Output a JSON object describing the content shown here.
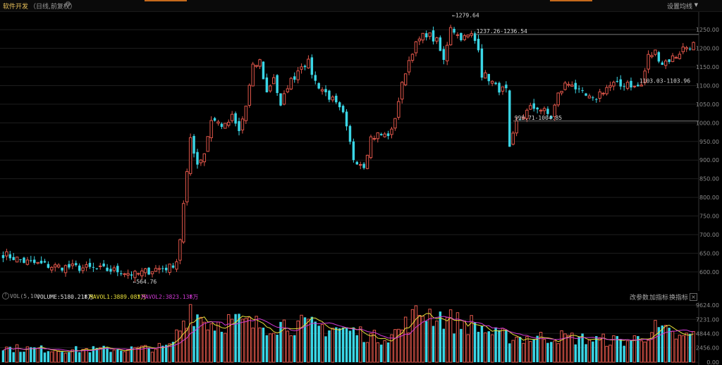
{
  "header": {
    "title": "软件开发",
    "subtitle": "（日线,前复权）",
    "ma_setting_label": "设置均线",
    "accent_color": "#c56a1c"
  },
  "colors": {
    "up": "#e0564a",
    "down": "#3ad6e6",
    "grid": "#1e1e1e",
    "axis_text": "#8a8a8a",
    "annotation": "#d8d8d8",
    "vol_ma1": "#e8e03a",
    "vol_ma2": "#d23ad6"
  },
  "vol_header": {
    "indicator": "VOL(5,10)",
    "volume_label": "VOLUME:5180.218万",
    "mavol1_label": "MAVOL1:3889.083万",
    "mavol2_label": "MAVOL2:3823.138万",
    "arrow": "↑",
    "buttons": [
      "改参数",
      "加指标",
      "换指标"
    ],
    "close": "×"
  },
  "chart_data": [
    {
      "type": "candlestick",
      "title": "软件开发（日线,前复权）",
      "ylim": [
        560,
        1290
      ],
      "yticks": [
        600,
        650,
        700,
        750,
        800,
        850,
        900,
        950,
        1000,
        1050,
        1100,
        1150,
        1200,
        1250
      ],
      "ytick_labels": [
        "600.00",
        "650.00",
        "700.00",
        "750.00",
        "800.00",
        "850.00",
        "900.00",
        "950.00",
        "1000.00",
        "1050.00",
        "1100.00",
        "1150.00",
        "1200.00",
        "1250.00"
      ],
      "grid": true,
      "n_bars": 200,
      "annotations": [
        {
          "text": "←1279.64",
          "bar": 129,
          "value": 1279.64
        },
        {
          "text": "←564.76",
          "bar": 37,
          "value": 564.76
        },
        {
          "text": "1237.26-1236.54",
          "bar": 136,
          "value": 1237.26,
          "line_to_end": true
        },
        {
          "text": "999.71-1004.85",
          "bar": 147,
          "value": 1004.85,
          "line_to_end": true
        },
        {
          "text": "1103.03-1103.96",
          "bar": 183,
          "value": 1103.96
        }
      ],
      "close_path": [
        [
          0,
          648
        ],
        [
          6,
          628
        ],
        [
          14,
          615
        ],
        [
          24,
          610
        ],
        [
          34,
          602
        ],
        [
          38,
          592
        ],
        [
          44,
          608
        ],
        [
          48,
          612
        ],
        [
          50,
          630
        ],
        [
          51,
          690
        ],
        [
          52,
          780
        ],
        [
          53,
          860
        ],
        [
          54,
          960
        ],
        [
          56,
          890
        ],
        [
          58,
          920
        ],
        [
          60,
          1010
        ],
        [
          64,
          990
        ],
        [
          66,
          1015
        ],
        [
          68,
          975
        ],
        [
          70,
          1045
        ],
        [
          72,
          1148
        ],
        [
          74,
          1165
        ],
        [
          76,
          1080
        ],
        [
          78,
          1125
        ],
        [
          80,
          1040
        ],
        [
          82,
          1100
        ],
        [
          84,
          1125
        ],
        [
          86,
          1158
        ],
        [
          88,
          1160
        ],
        [
          90,
          1110
        ],
        [
          92,
          1090
        ],
        [
          95,
          1060
        ],
        [
          98,
          1020
        ],
        [
          101,
          905
        ],
        [
          104,
          888
        ],
        [
          106,
          960
        ],
        [
          108,
          968
        ],
        [
          110,
          966
        ],
        [
          112,
          975
        ],
        [
          114,
          1060
        ],
        [
          116,
          1140
        ],
        [
          118,
          1195
        ],
        [
          120,
          1222
        ],
        [
          122,
          1240
        ],
        [
          125,
          1218
        ],
        [
          127,
          1165
        ],
        [
          129,
          1262
        ],
        [
          131,
          1235
        ],
        [
          133,
          1228
        ],
        [
          135,
          1235
        ],
        [
          137,
          1205
        ],
        [
          138,
          1130
        ],
        [
          140,
          1120
        ],
        [
          142,
          1095
        ],
        [
          145,
          1085
        ],
        [
          146,
          925
        ],
        [
          148,
          1000
        ],
        [
          150,
          1020
        ],
        [
          152,
          1038
        ],
        [
          154,
          1042
        ],
        [
          156,
          1030
        ],
        [
          158,
          1015
        ],
        [
          160,
          1075
        ],
        [
          162,
          1102
        ],
        [
          164,
          1108
        ],
        [
          166,
          1080
        ],
        [
          168,
          1070
        ],
        [
          170,
          1058
        ],
        [
          172,
          1080
        ],
        [
          174,
          1095
        ],
        [
          176,
          1103
        ],
        [
          178,
          1098
        ],
        [
          180,
          1110
        ],
        [
          182,
          1095
        ],
        [
          184,
          1100
        ],
        [
          186,
          1178
        ],
        [
          188,
          1190
        ],
        [
          190,
          1160
        ],
        [
          192,
          1170
        ],
        [
          194,
          1180
        ],
        [
          196,
          1200
        ],
        [
          199,
          1210
        ]
      ]
    },
    {
      "type": "bar",
      "title": "VOL(5,10)",
      "ylim": [
        0,
        10000
      ],
      "yticks": [
        0,
        2456,
        4844,
        7231,
        9624
      ],
      "ytick_labels": [
        "0.00",
        "2456.00",
        "4844.00",
        "7231.00",
        "9624.00"
      ],
      "unit": "万",
      "series": [
        {
          "name": "VOLUME",
          "last": 5180.218
        },
        {
          "name": "MAVOL1",
          "last": 3889.083
        },
        {
          "name": "MAVOL2",
          "last": 3823.138
        }
      ],
      "volume_path": [
        [
          0,
          2400
        ],
        [
          20,
          2100
        ],
        [
          40,
          2300
        ],
        [
          48,
          2600
        ],
        [
          52,
          6800
        ],
        [
          54,
          9400
        ],
        [
          56,
          8000
        ],
        [
          60,
          6500
        ],
        [
          66,
          7000
        ],
        [
          72,
          6200
        ],
        [
          80,
          6500
        ],
        [
          90,
          6000
        ],
        [
          96,
          5800
        ],
        [
          104,
          4800
        ],
        [
          108,
          4000
        ],
        [
          114,
          5200
        ],
        [
          118,
          7400
        ],
        [
          121,
          8600
        ],
        [
          126,
          7800
        ],
        [
          130,
          6800
        ],
        [
          136,
          6300
        ],
        [
          142,
          4600
        ],
        [
          150,
          4100
        ],
        [
          160,
          4300
        ],
        [
          170,
          3800
        ],
        [
          180,
          3600
        ],
        [
          184,
          4200
        ],
        [
          188,
          5600
        ],
        [
          192,
          4800
        ],
        [
          196,
          3900
        ],
        [
          199,
          5180
        ]
      ]
    }
  ]
}
